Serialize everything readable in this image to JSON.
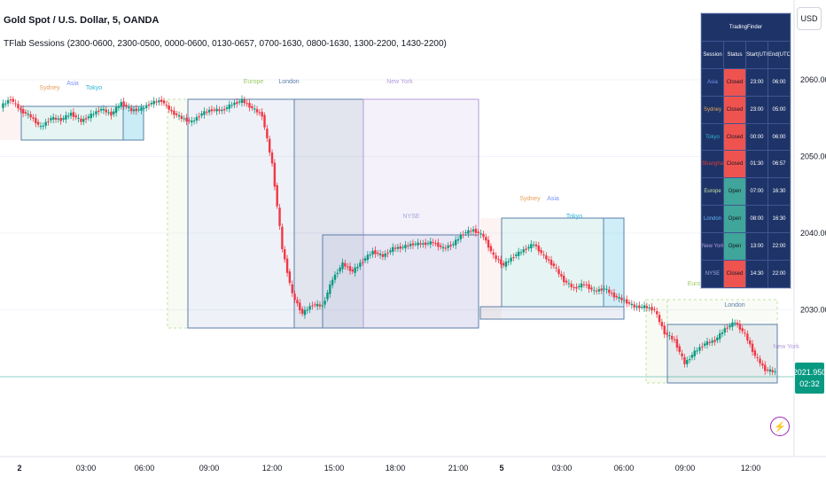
{
  "header": {
    "title": "Gold Spot / U.S. Dollar, 5, OANDA",
    "indicator": "TFlab Sessions (2300-0600, 2300-0500, 0000-0600, 0130-0657, 0700-1630, 0800-1630, 1300-2200, 1430-2200)"
  },
  "toolbar": {
    "currency_label": "USD"
  },
  "last_price": {
    "value": "2021.950",
    "countdown": "02:32",
    "color": "#089981"
  },
  "colors": {
    "up": "#089981",
    "down": "#f23645",
    "table_bg": "#1e3468"
  },
  "table": {
    "title": "TradingFinder",
    "headers": [
      "Session",
      "Status",
      "Start(UTC)",
      "End(UTC)"
    ],
    "rows": [
      {
        "session": "Asia",
        "status": "Closed",
        "start": "23:00",
        "end": "06:00",
        "color": "#7c93f7"
      },
      {
        "session": "Sydney",
        "status": "Closed",
        "start": "23:00",
        "end": "05:00",
        "color": "#e8a15b"
      },
      {
        "session": "Tokyo",
        "status": "Closed",
        "start": "00:00",
        "end": "06:00",
        "color": "#2fb5d4"
      },
      {
        "session": "Shanghai",
        "status": "Closed",
        "start": "01:30",
        "end": "06:57",
        "color": "#e53935"
      },
      {
        "session": "Europe",
        "status": "Open",
        "start": "07:00",
        "end": "16:30",
        "color": "#c5e1a5"
      },
      {
        "session": "London",
        "status": "Open",
        "start": "08:00",
        "end": "16:30",
        "color": "#64b5f6"
      },
      {
        "session": "New York",
        "status": "Open",
        "start": "13:00",
        "end": "22:00",
        "color": "#b39ddb"
      },
      {
        "session": "NYSE",
        "status": "Closed",
        "start": "14:30",
        "end": "22:00",
        "color": "#9fa8da"
      }
    ]
  },
  "chart_data": {
    "type": "candlestick",
    "title": "Gold Spot / U.S. Dollar, 5, OANDA",
    "x_tick_labels": [
      "2",
      "03:00",
      "06:00",
      "09:00",
      "12:00",
      "15:00",
      "18:00",
      "21:00",
      "5",
      "03:00",
      "06:00",
      "09:00",
      "12:00"
    ],
    "y_tick_labels": [
      "2030.000",
      "2040.000",
      "2050.000",
      "2060.000"
    ],
    "ylim": [
      2021.0,
      2062.0
    ],
    "x": [
      "00:00",
      "00:30",
      "01:00",
      "01:30",
      "02:00",
      "02:30",
      "03:00",
      "03:30",
      "04:00",
      "04:30",
      "05:00",
      "05:30",
      "06:00",
      "06:30",
      "07:00",
      "07:30",
      "08:00",
      "08:30",
      "09:00",
      "09:30",
      "10:00",
      "10:30",
      "11:00",
      "11:30",
      "12:00",
      "12:30",
      "13:00",
      "13:15",
      "13:30",
      "13:45",
      "14:00",
      "14:15",
      "14:30",
      "15:00",
      "15:30",
      "16:00",
      "16:30",
      "17:00",
      "17:30",
      "18:00",
      "18:30",
      "19:00",
      "19:30",
      "20:00",
      "20:30",
      "21:00",
      "21:30",
      "22:00",
      "22:30",
      "23:00",
      "23:30",
      "00:00",
      "00:30",
      "01:00",
      "01:30",
      "02:00",
      "02:30",
      "03:00",
      "03:30",
      "04:00",
      "04:30",
      "05:00",
      "05:30",
      "06:00",
      "06:30",
      "07:00",
      "07:30",
      "08:00",
      "08:30",
      "09:00",
      "09:30",
      "10:00",
      "10:30",
      "11:00",
      "11:30",
      "12:00",
      "12:30",
      "13:00"
    ],
    "close": [
      2056.5,
      2057.5,
      2056.0,
      2055.2,
      2053.8,
      2055.0,
      2054.8,
      2055.6,
      2054.6,
      2055.4,
      2056.2,
      2055.5,
      2057.0,
      2056.0,
      2056.2,
      2057.0,
      2057.3,
      2055.8,
      2055.0,
      2054.5,
      2055.6,
      2056.1,
      2056.0,
      2056.8,
      2057.3,
      2056.3,
      2055.4,
      2049.0,
      2038.0,
      2032.0,
      2029.5,
      2030.7,
      2030.5,
      2034.0,
      2036.0,
      2035.0,
      2036.4,
      2037.6,
      2037.0,
      2038.0,
      2038.2,
      2038.6,
      2038.6,
      2038.8,
      2038.0,
      2038.6,
      2040.0,
      2040.4,
      2039.6,
      2037.0,
      2035.8,
      2037.0,
      2037.8,
      2038.6,
      2037.0,
      2035.7,
      2033.8,
      2032.8,
      2033.4,
      2032.4,
      2032.8,
      2031.8,
      2031.2,
      2030.4,
      2030.4,
      2030.0,
      2027.0,
      2026.0,
      2023.0,
      2024.5,
      2025.6,
      2026.0,
      2027.5,
      2028.4,
      2026.8,
      2024.0,
      2022.2,
      2021.9
    ],
    "sessions_day1": [
      "Sydney",
      "Asia",
      "Tokyo",
      "Europe",
      "London",
      "New York",
      "NYSE"
    ],
    "sessions_day2": [
      "Sydney",
      "Asia",
      "Tokyo",
      "Europe",
      "London",
      "New York"
    ]
  }
}
